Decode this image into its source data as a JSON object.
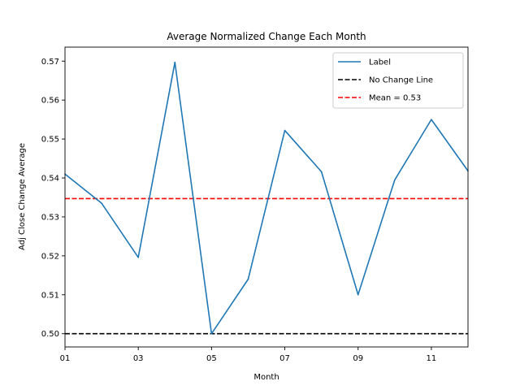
{
  "chart_data": {
    "type": "line",
    "title": "Average Normalized Change Each Month",
    "xlabel": "Month",
    "ylabel": "Adj Close Change Average",
    "x": [
      "01",
      "02",
      "03",
      "04",
      "05",
      "06",
      "07",
      "08",
      "09",
      "10",
      "11",
      "12"
    ],
    "x_tick_labels": [
      "01",
      "03",
      "05",
      "07",
      "09",
      "11"
    ],
    "y_ticks": [
      "0.50",
      "0.51",
      "0.52",
      "0.53",
      "0.54",
      "0.55",
      "0.56",
      "0.57"
    ],
    "ylim": [
      0.4966,
      0.5736
    ],
    "series": [
      {
        "name": "Label",
        "color": "#1f77b4",
        "style": "solid",
        "values": [
          0.541,
          0.5335,
          0.5196,
          0.5697,
          0.5,
          0.514,
          0.5522,
          0.5416,
          0.51,
          0.5395,
          0.555,
          0.5418
        ]
      }
    ],
    "hlines": [
      {
        "name": "No Change Line",
        "value": 0.5,
        "color": "#000000",
        "style": "dashed"
      },
      {
        "name": "Mean = 0.53",
        "value": 0.5347,
        "color": "#ff0000",
        "style": "dashed"
      }
    ],
    "legend": {
      "position": "top-right",
      "entries": [
        "Label",
        "No Change Line",
        "Mean = 0.53"
      ]
    },
    "grid": false
  }
}
